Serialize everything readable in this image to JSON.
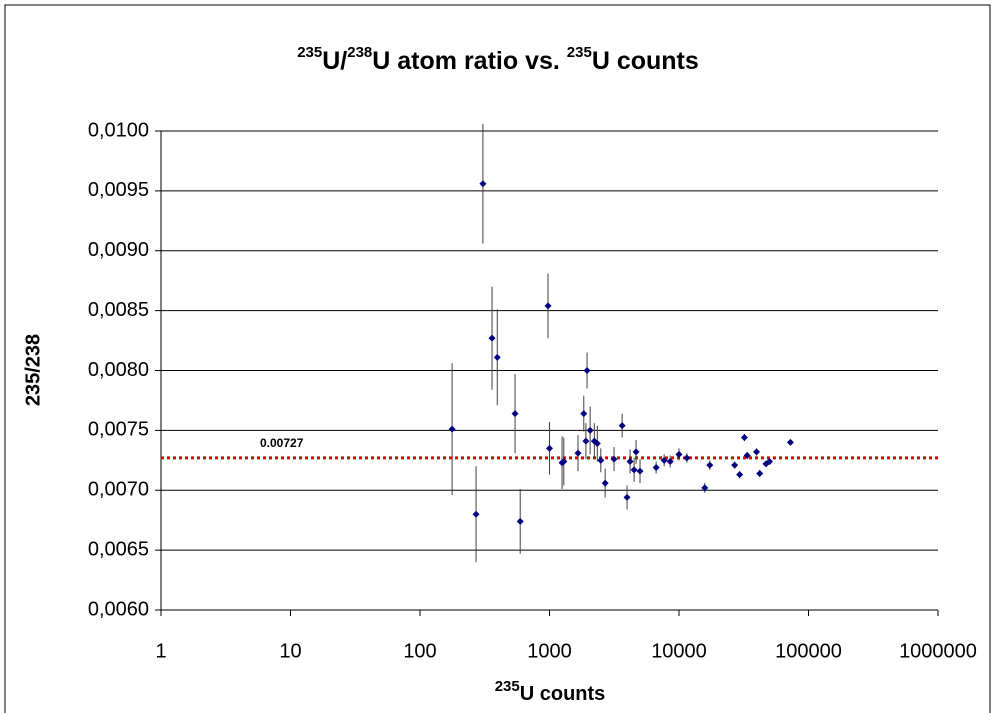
{
  "chart_data": {
    "type": "scatter",
    "title": [
      "235",
      "U/",
      "238",
      "U atom ratio vs. ",
      "235",
      "U counts"
    ],
    "x_label": [
      "235",
      "U counts"
    ],
    "y_label": "235/238",
    "x_log": true,
    "grid": true,
    "xlim": [
      1,
      1000000
    ],
    "xticks": [
      1,
      10,
      100,
      1000,
      10000,
      100000,
      1000000
    ],
    "ylim": [
      0.006,
      0.01
    ],
    "yticks": [
      {
        "value": 0.006,
        "label": "0,0060"
      },
      {
        "value": 0.0065,
        "label": "0,0065"
      },
      {
        "value": 0.007,
        "label": "0,0070"
      },
      {
        "value": 0.0075,
        "label": "0,0075"
      },
      {
        "value": 0.008,
        "label": "0,0080"
      },
      {
        "value": 0.0085,
        "label": "0,0085"
      },
      {
        "value": 0.009,
        "label": "0,0090"
      },
      {
        "value": 0.0095,
        "label": "0,0095"
      },
      {
        "value": 0.01,
        "label": "0,0100"
      }
    ],
    "reference_line": {
      "value": 0.00727,
      "label": "0.00727",
      "color": "#e00000"
    },
    "series": [
      {
        "color": "#000080",
        "error_color": "#404040",
        "x": [
          177,
          271,
          306,
          360,
          395,
          542,
          594,
          974,
          1000,
          1250,
          1290,
          1660,
          1840,
          1910,
          1950,
          2060,
          2220,
          2340,
          2490,
          2690,
          3150,
          3640,
          3970,
          4190,
          4500,
          4660,
          5000,
          6660,
          7680,
          8550,
          10000,
          11500,
          15800,
          17300,
          26900,
          29400,
          32000,
          33600,
          39700,
          42000,
          47000,
          50000,
          72500
        ],
        "values": [
          0.00751,
          0.0068,
          0.00956,
          0.00827,
          0.00811,
          0.00764,
          0.00674,
          0.00854,
          0.00735,
          0.00723,
          0.00724,
          0.00731,
          0.00764,
          0.00741,
          0.008,
          0.0075,
          0.00741,
          0.00739,
          0.00725,
          0.00706,
          0.00726,
          0.00754,
          0.00694,
          0.00724,
          0.00717,
          0.00732,
          0.00716,
          0.00719,
          0.00725,
          0.00724,
          0.0073,
          0.00727,
          0.00702,
          0.00721,
          0.00721,
          0.00713,
          0.00744,
          0.00729,
          0.00732,
          0.00714,
          0.00722,
          0.00724,
          0.0074
        ],
        "errors": [
          0.00055,
          0.0004,
          0.0005,
          0.00043,
          0.0004,
          0.00033,
          0.00027,
          0.00027,
          0.00022,
          0.00022,
          0.0002,
          0.00015,
          0.00015,
          0.00015,
          0.00015,
          0.0002,
          0.00015,
          0.00015,
          0.0001,
          0.00012,
          0.0001,
          0.0001,
          0.0001,
          0.0001,
          0.0001,
          0.0001,
          0.0001,
          5e-05,
          5e-05,
          5e-05,
          5e-05,
          4e-05,
          4e-05,
          4e-05,
          3e-05,
          3e-05,
          3e-05,
          3e-05,
          3e-05,
          3e-05,
          2e-05,
          2e-05,
          2e-05
        ]
      }
    ]
  }
}
